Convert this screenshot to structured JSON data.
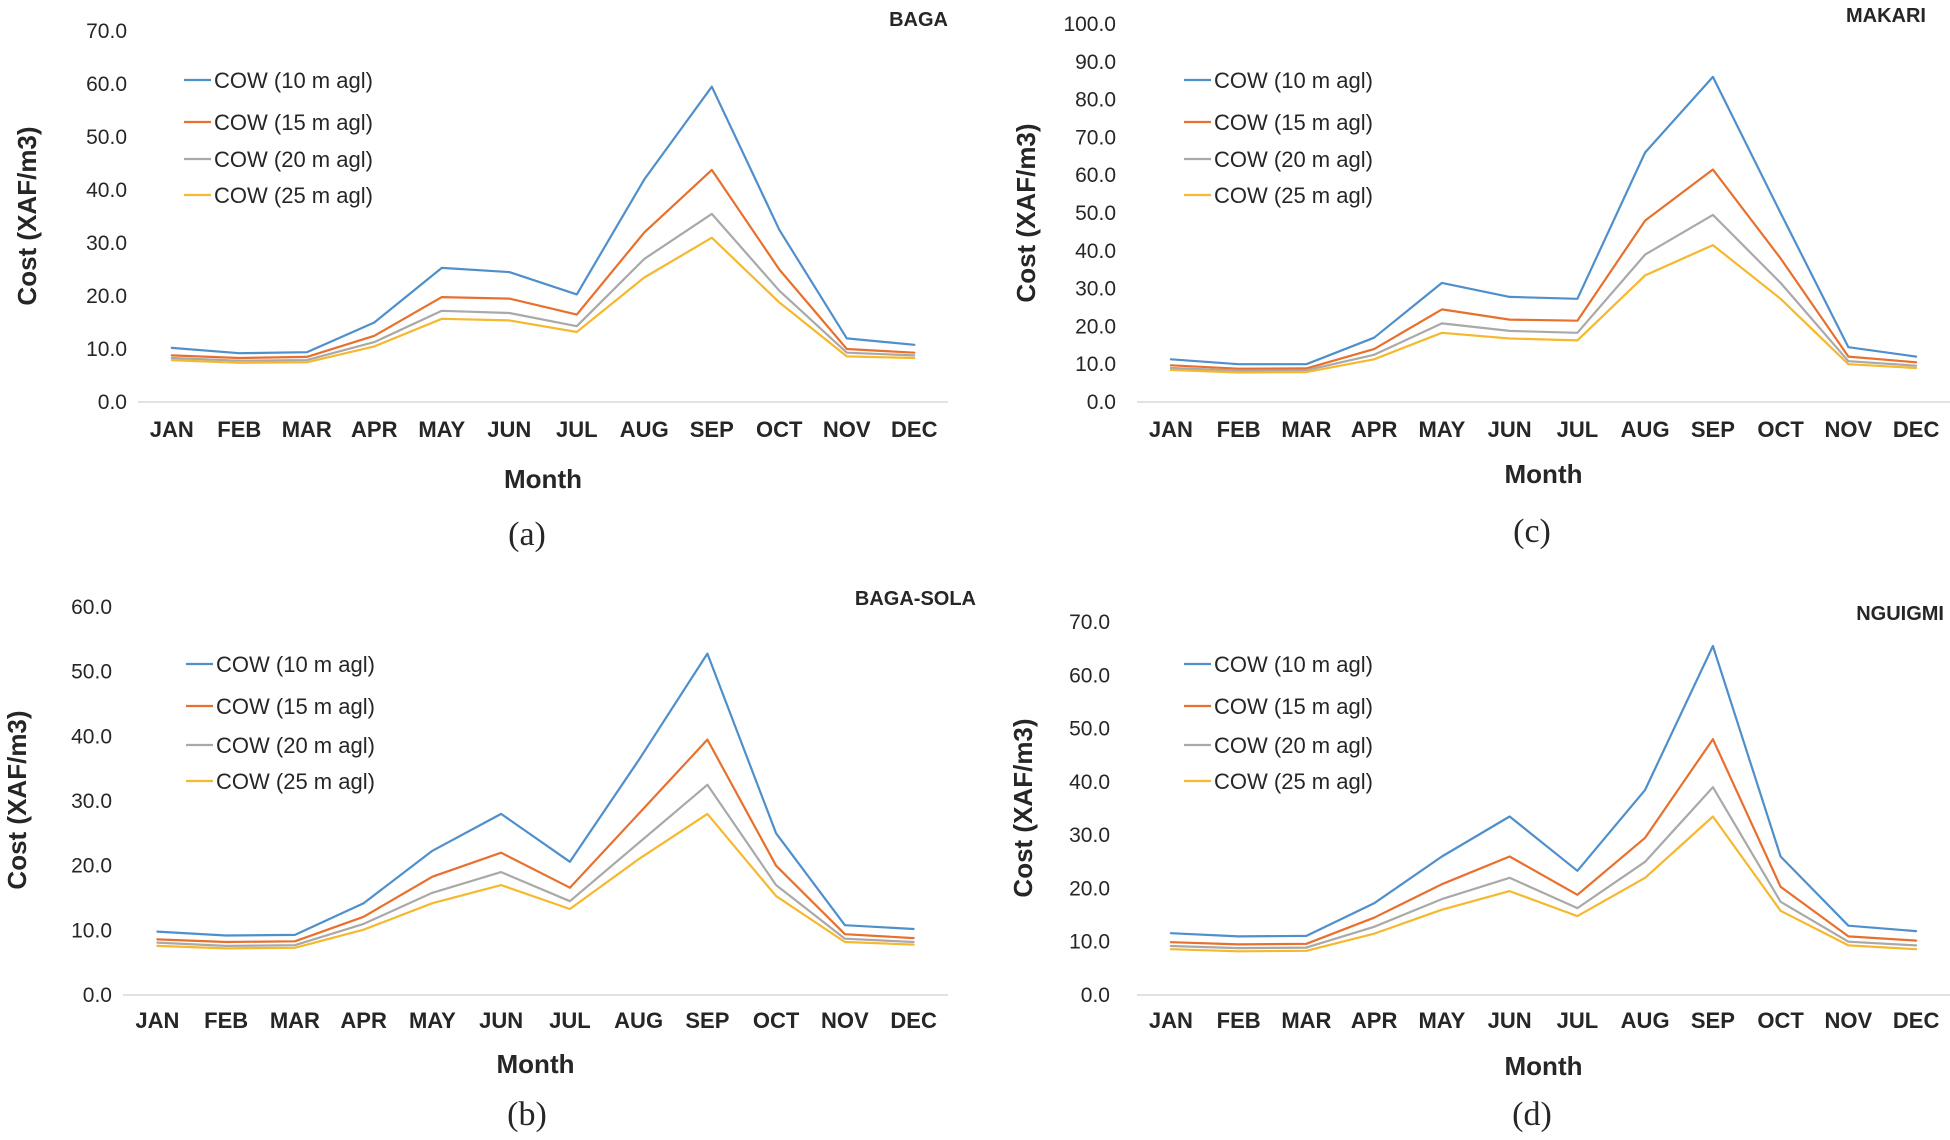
{
  "chart_data": [
    {
      "type": "line",
      "panel": "(a)",
      "title": "BAGA",
      "xlabel": "Month",
      "ylabel": "Cost (XAF/m3)",
      "ylim": [
        0,
        70
      ],
      "ystep": 10,
      "categories": [
        "JAN",
        "FEB",
        "MAR",
        "APR",
        "MAY",
        "JUN",
        "JUL",
        "AUG",
        "SEP",
        "OCT",
        "NOV",
        "DEC"
      ],
      "series": [
        {
          "name": "COW (10 m agl)",
          "color": "#4F8FCB",
          "values": [
            10.2,
            9.2,
            9.4,
            15.0,
            25.3,
            24.5,
            20.3,
            42.0,
            59.5,
            32.5,
            12.0,
            10.8
          ]
        },
        {
          "name": "COW (15 m agl)",
          "color": "#E8702E",
          "values": [
            8.8,
            8.3,
            8.5,
            12.5,
            19.8,
            19.5,
            16.5,
            32.0,
            43.8,
            25.0,
            10.0,
            9.3
          ]
        },
        {
          "name": "COW (20 m agl)",
          "color": "#A9A9A9",
          "values": [
            8.3,
            7.8,
            7.9,
            11.3,
            17.2,
            16.8,
            14.3,
            27.0,
            35.5,
            21.0,
            9.3,
            8.8
          ]
        },
        {
          "name": "COW (25 m agl)",
          "color": "#F5B82E",
          "values": [
            7.9,
            7.4,
            7.5,
            10.5,
            15.7,
            15.4,
            13.2,
            23.5,
            31.0,
            18.8,
            8.6,
            8.3
          ]
        }
      ]
    },
    {
      "type": "line",
      "panel": "(b)",
      "title": "BAGA-SOLA",
      "xlabel": "Month",
      "ylabel": "Cost (XAF/m3)",
      "ylim": [
        0,
        60
      ],
      "ystep": 10,
      "categories": [
        "JAN",
        "FEB",
        "MAR",
        "APR",
        "MAY",
        "JUN",
        "JUL",
        "AUG",
        "SEP",
        "OCT",
        "NOV",
        "DEC"
      ],
      "series": [
        {
          "name": "COW (10 m agl)",
          "color": "#4F8FCB",
          "values": [
            9.8,
            9.2,
            9.3,
            14.2,
            22.3,
            28.0,
            20.6,
            36.3,
            52.8,
            25.0,
            10.8,
            10.2
          ]
        },
        {
          "name": "COW (15 m agl)",
          "color": "#E8702E",
          "values": [
            8.6,
            8.2,
            8.3,
            12.1,
            18.3,
            22.0,
            16.6,
            28.0,
            39.5,
            20.0,
            9.4,
            8.8
          ]
        },
        {
          "name": "COW (20 m agl)",
          "color": "#A9A9A9",
          "values": [
            8.1,
            7.6,
            7.7,
            11.0,
            15.8,
            19.0,
            14.5,
            23.5,
            32.5,
            17.0,
            8.7,
            8.2
          ]
        },
        {
          "name": "COW (25 m agl)",
          "color": "#F5B82E",
          "values": [
            7.6,
            7.2,
            7.3,
            10.1,
            14.2,
            17.0,
            13.3,
            21.0,
            28.0,
            15.3,
            8.2,
            7.8
          ]
        }
      ]
    },
    {
      "type": "line",
      "panel": "(c)",
      "title": "MAKARI",
      "xlabel": "Month",
      "ylabel": "Cost (XAF/m3)",
      "ylim": [
        0,
        100
      ],
      "ystep": 10,
      "categories": [
        "JAN",
        "FEB",
        "MAR",
        "APR",
        "MAY",
        "JUN",
        "JUL",
        "AUG",
        "SEP",
        "OCT",
        "NOV",
        "DEC"
      ],
      "series": [
        {
          "name": "COW (10 m agl)",
          "color": "#4F8FCB",
          "values": [
            11.3,
            10.0,
            10.0,
            17.0,
            31.5,
            27.8,
            27.3,
            66.0,
            86.0,
            50.0,
            14.5,
            12.0
          ]
        },
        {
          "name": "COW (15 m agl)",
          "color": "#E8702E",
          "values": [
            9.7,
            8.8,
            8.9,
            14.0,
            24.5,
            21.8,
            21.5,
            48.0,
            61.5,
            38.0,
            12.0,
            10.5
          ]
        },
        {
          "name": "COW (20 m agl)",
          "color": "#A9A9A9",
          "values": [
            9.0,
            8.3,
            8.4,
            12.5,
            20.8,
            18.8,
            18.3,
            39.0,
            49.5,
            31.5,
            10.8,
            9.6
          ]
        },
        {
          "name": "COW (25 m agl)",
          "color": "#F5B82E",
          "values": [
            8.5,
            7.8,
            7.9,
            11.3,
            18.3,
            16.8,
            16.3,
            33.5,
            41.5,
            27.3,
            10.0,
            9.0
          ]
        }
      ]
    },
    {
      "type": "line",
      "panel": "(d)",
      "title": "NGUIGMI",
      "xlabel": "Month",
      "ylabel": "Cost (XAF/m3)",
      "ylim": [
        0,
        70
      ],
      "ystep": 10,
      "categories": [
        "JAN",
        "FEB",
        "MAR",
        "APR",
        "MAY",
        "JUN",
        "JUL",
        "AUG",
        "SEP",
        "OCT",
        "NOV",
        "DEC"
      ],
      "series": [
        {
          "name": "COW (10 m agl)",
          "color": "#4F8FCB",
          "values": [
            11.6,
            11.0,
            11.1,
            17.2,
            26.0,
            33.5,
            23.3,
            38.5,
            65.5,
            26.0,
            13.0,
            12.0
          ]
        },
        {
          "name": "COW (15 m agl)",
          "color": "#E8702E",
          "values": [
            9.9,
            9.5,
            9.6,
            14.5,
            20.8,
            26.0,
            18.8,
            29.5,
            48.0,
            20.3,
            11.0,
            10.2
          ]
        },
        {
          "name": "COW (20 m agl)",
          "color": "#A9A9A9",
          "values": [
            9.2,
            8.8,
            8.9,
            12.8,
            18.0,
            22.0,
            16.3,
            25.0,
            39.0,
            17.5,
            10.0,
            9.3
          ]
        },
        {
          "name": "COW (25 m agl)",
          "color": "#F5B82E",
          "values": [
            8.6,
            8.2,
            8.3,
            11.5,
            16.0,
            19.5,
            14.8,
            22.0,
            33.5,
            15.8,
            9.3,
            8.6
          ]
        }
      ]
    }
  ]
}
